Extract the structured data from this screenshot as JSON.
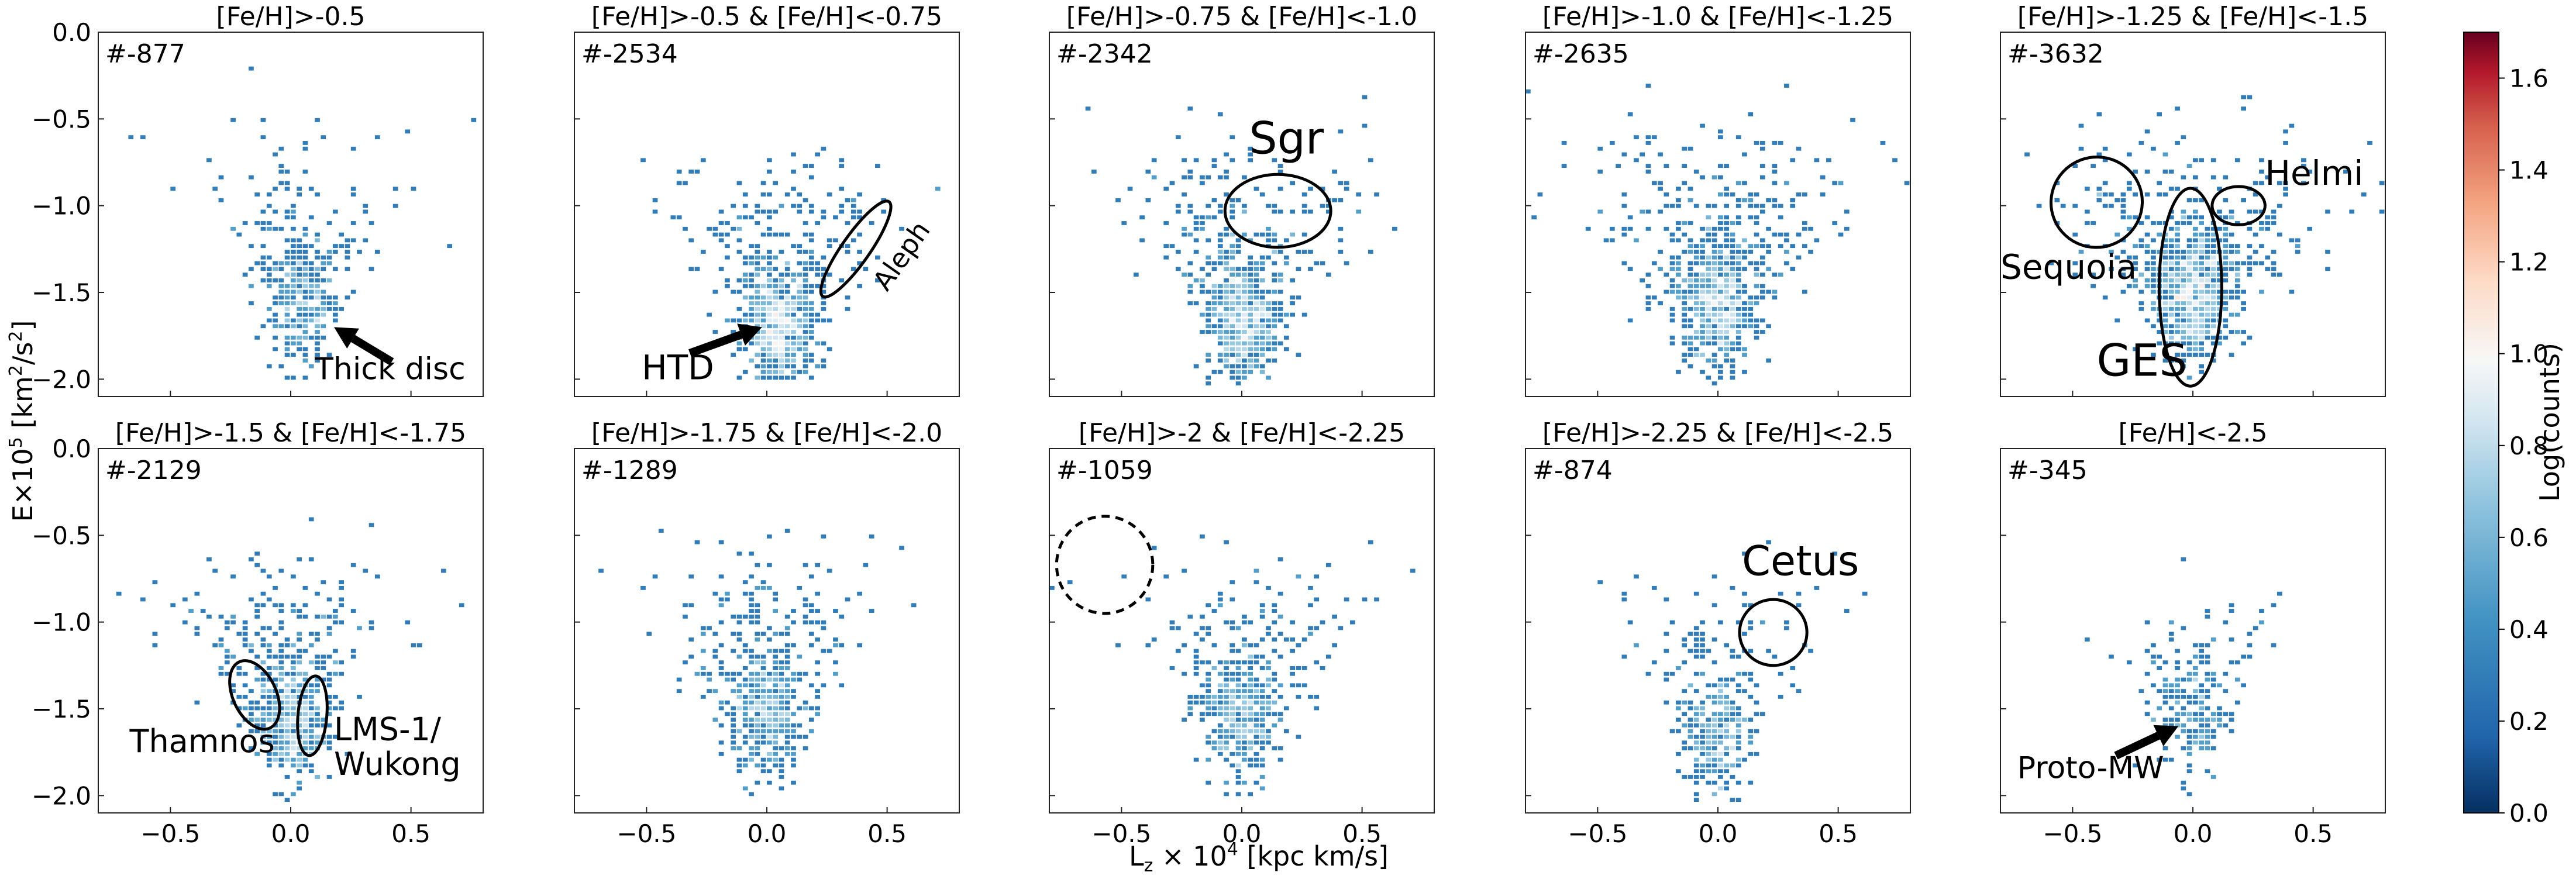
{
  "figure": {
    "xlabel": "L$_z$ × 10$^4$ [kpc km/s]",
    "xlabel_display": "L",
    "xlabel_sub": "z",
    "xlabel_tail": " × 10",
    "xlabel_sup": "4",
    "xlabel_end": " [kpc km/s]",
    "ylabel_pre": "E×10",
    "ylabel_sup": "5",
    "ylabel_mid": " [km",
    "ylabel_sup2": "2",
    "ylabel_mid2": "/s",
    "ylabel_sup3": "2",
    "ylabel_end": "]",
    "colorbar_label": "Log(counts)",
    "colorbar_ticks": [
      "0.0",
      "0.2",
      "0.4",
      "0.6",
      "0.8",
      "1.0",
      "1.2",
      "1.4",
      "1.6"
    ],
    "colorbar_range": [
      0,
      1.7
    ],
    "xticks": [
      "−0.5",
      "0.0",
      "0.5"
    ],
    "yticks": [
      "0.0",
      "−0.5",
      "−1.0",
      "−1.5",
      "−2.0"
    ]
  },
  "chart_data": [
    {
      "type": "heatmap",
      "title": "[Fe/H]>-0.5",
      "count_label": "#-877",
      "xlim": [
        -0.8,
        0.8
      ],
      "ylim": [
        -2.1,
        0.0
      ],
      "wedge": {
        "spread": 0.45,
        "ytop": -0.4,
        "peak": [
          0.05,
          -1.6
        ],
        "n": 180
      },
      "annotations": [
        {
          "kind": "arrow",
          "text": "Thick disc",
          "from": [
            0.42,
            -1.9
          ],
          "to": [
            0.18,
            -1.7
          ],
          "text_at": [
            0.1,
            -2.0
          ],
          "size": 52
        }
      ],
      "show_ylabels": true,
      "show_xlabels": false
    },
    {
      "type": "heatmap",
      "title": "[Fe/H]>-0.5 & [Fe/H]<-0.75",
      "count_label": "#-2534",
      "xlim": [
        -0.8,
        0.8
      ],
      "ylim": [
        -2.1,
        0.0
      ],
      "wedge": {
        "spread": 0.55,
        "ytop": -0.6,
        "peak": [
          0.05,
          -1.75
        ],
        "n": 380
      },
      "annotations": [
        {
          "kind": "arrow",
          "text": "HTD",
          "from": [
            -0.32,
            -1.85
          ],
          "to": [
            -0.02,
            -1.7
          ],
          "text_at": [
            -0.52,
            -2.0
          ],
          "size": 58
        },
        {
          "kind": "ellipse",
          "text": "Aleph",
          "cx": 0.37,
          "cy": -1.25,
          "rx": 0.24,
          "ry": 0.08,
          "rot": -55,
          "dashed": false,
          "text_at": [
            0.5,
            -1.5
          ],
          "size": 46,
          "text_rot": -55
        }
      ],
      "show_ylabels": false,
      "show_xlabels": false
    },
    {
      "type": "heatmap",
      "title": "[Fe/H]>-0.75 & [Fe/H]<-1.0",
      "count_label": "#-2342",
      "xlim": [
        -0.8,
        0.8
      ],
      "ylim": [
        -2.1,
        0.0
      ],
      "wedge": {
        "spread": 0.55,
        "ytop": -0.5,
        "peak": [
          0.0,
          -1.7
        ],
        "n": 360
      },
      "annotations": [
        {
          "kind": "ellipse",
          "text": "Sgr",
          "cx": 0.15,
          "cy": -1.03,
          "rx": 0.22,
          "ry": 0.21,
          "rot": 0,
          "dashed": false,
          "text_at": [
            0.03,
            -0.7
          ],
          "size": 76
        }
      ],
      "show_ylabels": false,
      "show_xlabels": false
    },
    {
      "type": "heatmap",
      "title": "[Fe/H]>-1.0 & [Fe/H]<-1.25",
      "count_label": "#-2635",
      "xlim": [
        -0.8,
        0.8
      ],
      "ylim": [
        -2.1,
        0.0
      ],
      "wedge": {
        "spread": 0.6,
        "ytop": -0.4,
        "peak": [
          0.0,
          -1.6
        ],
        "n": 380
      },
      "annotations": [],
      "show_ylabels": false,
      "show_xlabels": false
    },
    {
      "type": "heatmap",
      "title": "[Fe/H]>-1.25 & [Fe/H]<-1.5",
      "count_label": "#-3632",
      "xlim": [
        -0.8,
        0.8
      ],
      "ylim": [
        -2.1,
        0.0
      ],
      "wedge": {
        "spread": 0.65,
        "ytop": -0.5,
        "peak": [
          0.0,
          -1.55
        ],
        "n": 450
      },
      "annotations": [
        {
          "kind": "ellipse",
          "text": "Sequoia",
          "cx": -0.4,
          "cy": -0.98,
          "rx": 0.19,
          "ry": 0.26,
          "rot": -20,
          "dashed": false,
          "text_at": [
            -0.8,
            -1.42
          ],
          "size": 58
        },
        {
          "kind": "ellipse",
          "text": "Helmi",
          "cx": 0.19,
          "cy": -1.0,
          "rx": 0.11,
          "ry": 0.11,
          "rot": 0,
          "dashed": false,
          "text_at": [
            0.3,
            -0.88
          ],
          "size": 58
        },
        {
          "kind": "ellipse",
          "text": "GES",
          "cx": -0.01,
          "cy": -1.47,
          "rx": 0.13,
          "ry": 0.57,
          "rot": 0,
          "dashed": false,
          "text_at": [
            -0.4,
            -1.98
          ],
          "size": 76
        }
      ],
      "show_ylabels": false,
      "show_xlabels": false
    },
    {
      "type": "heatmap",
      "title": "[Fe/H]>-1.5 & [Fe/H]<-1.75",
      "count_label": "#-2129",
      "xlim": [
        -0.8,
        0.8
      ],
      "ylim": [
        -2.1,
        0.0
      ],
      "wedge": {
        "spread": 0.5,
        "ytop": -0.5,
        "peak": [
          0.0,
          -1.6
        ],
        "n": 300
      },
      "annotations": [
        {
          "kind": "ellipse",
          "text": "Thamnos",
          "cx": -0.15,
          "cy": -1.42,
          "rx": 0.09,
          "ry": 0.21,
          "rot": -25,
          "dashed": false,
          "text_at": [
            -0.67,
            -1.75
          ],
          "size": 54
        },
        {
          "kind": "ellipse",
          "text": "LMS-1/",
          "text2": "Wukong",
          "cx": 0.09,
          "cy": -1.54,
          "rx": 0.06,
          "ry": 0.23,
          "rot": 5,
          "dashed": false,
          "text_at": [
            0.18,
            -1.68
          ],
          "size": 54
        }
      ],
      "show_ylabels": true,
      "show_xlabels": true
    },
    {
      "type": "heatmap",
      "title": "[Fe/H]>-1.75 & [Fe/H]<-2.0",
      "count_label": "#-1289",
      "xlim": [
        -0.8,
        0.8
      ],
      "ylim": [
        -2.1,
        0.0
      ],
      "wedge": {
        "spread": 0.5,
        "ytop": -0.5,
        "peak": [
          0.0,
          -1.55
        ],
        "n": 260
      },
      "annotations": [],
      "show_ylabels": false,
      "show_xlabels": true
    },
    {
      "type": "heatmap",
      "title": "[Fe/H]>-2 & [Fe/H]<-2.25",
      "count_label": "#-1059",
      "xlim": [
        -0.8,
        0.8
      ],
      "ylim": [
        -2.1,
        0.0
      ],
      "wedge": {
        "spread": 0.5,
        "ytop": -0.6,
        "peak": [
          0.0,
          -1.6
        ],
        "n": 240
      },
      "annotations": [
        {
          "kind": "ellipse",
          "text": "",
          "cx": -0.57,
          "cy": -0.67,
          "rx": 0.2,
          "ry": 0.28,
          "rot": 0,
          "dashed": true,
          "text_at": [
            0,
            0
          ],
          "size": 10
        }
      ],
      "show_ylabels": false,
      "show_xlabels": true
    },
    {
      "type": "heatmap",
      "title": "[Fe/H]>-2.25 & [Fe/H]<-2.5",
      "count_label": "#-874",
      "xlim": [
        -0.8,
        0.8
      ],
      "ylim": [
        -2.1,
        0.0
      ],
      "wedge": {
        "spread": 0.45,
        "ytop": -0.6,
        "peak": [
          0.0,
          -1.7
        ],
        "n": 180
      },
      "annotations": [
        {
          "kind": "ellipse",
          "text": "Cetus",
          "cx": 0.23,
          "cy": -1.06,
          "rx": 0.14,
          "ry": 0.19,
          "rot": 0,
          "dashed": false,
          "text_at": [
            0.1,
            -0.73
          ],
          "size": 70
        }
      ],
      "show_ylabels": false,
      "show_xlabels": true
    },
    {
      "type": "heatmap",
      "title": "[Fe/H]<-2.5",
      "count_label": "#-345",
      "xlim": [
        -0.8,
        0.8
      ],
      "ylim": [
        -2.1,
        0.0
      ],
      "wedge": {
        "spread": 0.4,
        "ytop": -0.8,
        "peak": [
          0.0,
          -1.55
        ],
        "n": 110
      },
      "annotations": [
        {
          "kind": "arrow",
          "text": "Proto-MW",
          "from": [
            -0.32,
            -1.77
          ],
          "to": [
            -0.06,
            -1.6
          ],
          "text_at": [
            -0.73,
            -1.9
          ],
          "size": 52
        }
      ],
      "show_ylabels": false,
      "show_xlabels": true
    }
  ]
}
